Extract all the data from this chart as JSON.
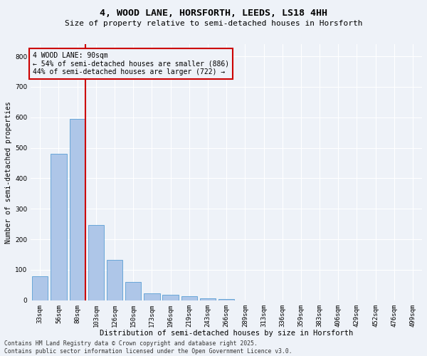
{
  "title1": "4, WOOD LANE, HORSFORTH, LEEDS, LS18 4HH",
  "title2": "Size of property relative to semi-detached houses in Horsforth",
  "xlabel": "Distribution of semi-detached houses by size in Horsforth",
  "ylabel": "Number of semi-detached properties",
  "categories": [
    "33sqm",
    "56sqm",
    "80sqm",
    "103sqm",
    "126sqm",
    "150sqm",
    "173sqm",
    "196sqm",
    "219sqm",
    "243sqm",
    "266sqm",
    "289sqm",
    "313sqm",
    "336sqm",
    "359sqm",
    "383sqm",
    "406sqm",
    "429sqm",
    "452sqm",
    "476sqm",
    "499sqm"
  ],
  "values": [
    80,
    480,
    595,
    248,
    133,
    60,
    22,
    18,
    14,
    7,
    4,
    0,
    0,
    0,
    0,
    0,
    0,
    0,
    0,
    0,
    0
  ],
  "bar_color": "#aec6e8",
  "bar_edgecolor": "#5a9fd4",
  "redline_idx": 2,
  "redline_color": "#cc0000",
  "annotation_text": "4 WOOD LANE: 90sqm\n← 54% of semi-detached houses are smaller (886)\n44% of semi-detached houses are larger (722) →",
  "annotation_box_edgecolor": "#cc0000",
  "ylim": [
    0,
    840
  ],
  "yticks": [
    0,
    100,
    200,
    300,
    400,
    500,
    600,
    700,
    800
  ],
  "background_color": "#eef2f8",
  "grid_color": "#ffffff",
  "footer": "Contains HM Land Registry data © Crown copyright and database right 2025.\nContains public sector information licensed under the Open Government Licence v3.0.",
  "title1_fontsize": 9.5,
  "title2_fontsize": 8.0,
  "xlabel_fontsize": 7.5,
  "ylabel_fontsize": 7.0,
  "tick_fontsize": 6.5,
  "annotation_fontsize": 7.0,
  "footer_fontsize": 5.8
}
